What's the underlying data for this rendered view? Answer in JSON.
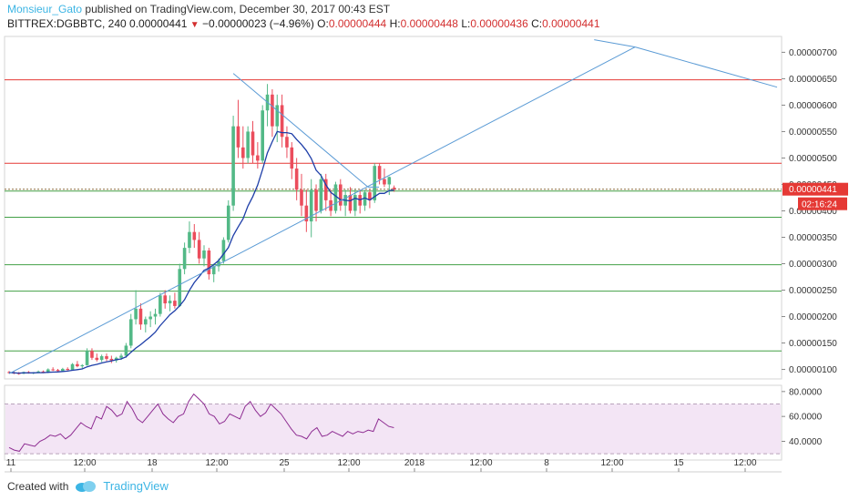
{
  "header": {
    "author": "Monsieur_Gato",
    "published": "published on TradingView.com, December 30, 2017 00:43 EST",
    "symbol": "BITTREX:DGBBTC, 240",
    "last": "0.00000441",
    "change": "−0.00000023 (−4.96%)",
    "o_label": "O:",
    "o": "0.00000444",
    "h_label": "H:",
    "h": "0.00000448",
    "l_label": "L:",
    "l": "0.00000436",
    "c_label": "C:",
    "c": "0.00000441"
  },
  "footer": {
    "created_with": "Created with",
    "brand": "TradingView"
  },
  "colors": {
    "up": "#53b987",
    "down": "#eb4d5c",
    "resistance": "#e53935",
    "support": "#43a047",
    "trend": "#5b9bd5",
    "ma": "#1e3ea8",
    "rsi": "#8e2d92",
    "rsi_band": "#f3e5f5"
  },
  "chart_data": {
    "type": "candlestick",
    "price_axis": {
      "ylim": [
        8.2e-07,
        7.3e-06
      ],
      "ticks": [
        "0.00000100",
        "0.00000150",
        "0.00000200",
        "0.00000250",
        "0.00000300",
        "0.00000350",
        "0.00000400",
        "0.00000450",
        "0.00000500",
        "0.00000550",
        "0.00000600",
        "0.00000650",
        "0.00000700"
      ],
      "tick_values": [
        1e-06,
        1.5e-06,
        2e-06,
        2.5e-06,
        3e-06,
        3.5e-06,
        4e-06,
        4.5e-06,
        5e-06,
        5.5e-06,
        6e-06,
        6.5e-06,
        7e-06
      ],
      "last_price_label": "0.00000441",
      "countdown": "02:16:24"
    },
    "time_axis": {
      "ticks": [
        "11",
        "12:00",
        "18",
        "12:00",
        "25",
        "12:00",
        "2018",
        "12:00",
        "8",
        "12:00",
        "15",
        "12:00"
      ]
    },
    "horizontal_levels": {
      "resistance": [
        6.48e-06,
        4.9e-06
      ],
      "support": [
        3.88e-06,
        2.98e-06,
        2.48e-06,
        1.35e-06
      ],
      "last": 4.41e-06
    },
    "candles": [
      [
        9.5e-07,
        9.7e-07,
        9.2e-07,
        9.4e-07
      ],
      [
        9.4e-07,
        9.6e-07,
        9.1e-07,
        9.3e-07
      ],
      [
        9.3e-07,
        9.5e-07,
        9e-07,
        9.2e-07
      ],
      [
        9.2e-07,
        9.6e-07,
        9.1e-07,
        9.5e-07
      ],
      [
        9.5e-07,
        9.7e-07,
        9.2e-07,
        9.3e-07
      ],
      [
        9.3e-07,
        9.5e-07,
        9.1e-07,
        9.4e-07
      ],
      [
        9.4e-07,
        9.8e-07,
        9.3e-07,
        9.6e-07
      ],
      [
        9.6e-07,
        9.8e-07,
        9.3e-07,
        9.4e-07
      ],
      [
        9.4e-07,
        1.02e-06,
        9.3e-07,
        1e-06
      ],
      [
        1e-06,
        1.04e-06,
        9.7e-07,
        9.9e-07
      ],
      [
        9.9e-07,
        1.01e-06,
        9.6e-07,
        9.7e-07
      ],
      [
        9.7e-07,
        1.03e-06,
        9.6e-07,
        1.01e-06
      ],
      [
        1.01e-06,
        1.04e-06,
        9.8e-07,
        9.9e-07
      ],
      [
        9.9e-07,
        1.12e-06,
        9.8e-07,
        1.1e-06
      ],
      [
        1.1e-06,
        1.16e-06,
        1.04e-06,
        1.06e-06
      ],
      [
        1.06e-06,
        1.1e-06,
        1.02e-06,
        1.08e-06
      ],
      [
        1.08e-06,
        1.4e-06,
        1.07e-06,
        1.35e-06
      ],
      [
        1.35e-06,
        1.4e-06,
        1.18e-06,
        1.22e-06
      ],
      [
        1.22e-06,
        1.3e-06,
        1.15e-06,
        1.18e-06
      ],
      [
        1.18e-06,
        1.28e-06,
        1.14e-06,
        1.25e-06
      ],
      [
        1.25e-06,
        1.3e-06,
        1.16e-06,
        1.2e-06
      ],
      [
        1.2e-06,
        1.26e-06,
        1.12e-06,
        1.17e-06
      ],
      [
        1.17e-06,
        1.24e-06,
        1.13e-06,
        1.22e-06
      ],
      [
        1.22e-06,
        1.3e-06,
        1.18e-06,
        1.26e-06
      ],
      [
        1.26e-06,
        1.5e-06,
        1.22e-06,
        1.45e-06
      ],
      [
        1.45e-06,
        2.05e-06,
        1.4e-06,
        1.95e-06
      ],
      [
        1.95e-06,
        2.5e-06,
        1.85e-06,
        2.15e-06
      ],
      [
        2.15e-06,
        2.25e-06,
        1.75e-06,
        1.85e-06
      ],
      [
        1.85e-06,
        2e-06,
        1.7e-06,
        1.95e-06
      ],
      [
        1.95e-06,
        2.1e-06,
        1.8e-06,
        2e-06
      ],
      [
        2e-06,
        2.15e-06,
        1.85e-06,
        2.05e-06
      ],
      [
        2.05e-06,
        2.45e-06,
        2e-06,
        2.4e-06
      ],
      [
        2.4e-06,
        2.5e-06,
        2.15e-06,
        2.25e-06
      ],
      [
        2.25e-06,
        2.4e-06,
        2.1e-06,
        2.3e-06
      ],
      [
        2.3e-06,
        2.45e-06,
        2.15e-06,
        2.2e-06
      ],
      [
        2.2e-06,
        3e-06,
        2.18e-06,
        2.9e-06
      ],
      [
        2.9e-06,
        3.4e-06,
        2.8e-06,
        3.3e-06
      ],
      [
        3.3e-06,
        3.8e-06,
        3.2e-06,
        3.6e-06
      ],
      [
        3.6e-06,
        3.75e-06,
        3.3e-06,
        3.45e-06
      ],
      [
        3.45e-06,
        3.6e-06,
        3e-06,
        3.1e-06
      ],
      [
        3.1e-06,
        3.35e-06,
        2.95e-06,
        3.25e-06
      ],
      [
        3.25e-06,
        3.3e-06,
        2.7e-06,
        2.8e-06
      ],
      [
        2.8e-06,
        3e-06,
        2.65e-06,
        2.95e-06
      ],
      [
        2.95e-06,
        3.1e-06,
        2.85e-06,
        3.05e-06
      ],
      [
        3.05e-06,
        3.5e-06,
        3e-06,
        3.45e-06
      ],
      [
        3.45e-06,
        4.2e-06,
        3.4e-06,
        4.1e-06
      ],
      [
        4.1e-06,
        5.8e-06,
        4e-06,
        5.6e-06
      ],
      [
        5.6e-06,
        6.1e-06,
        5e-06,
        5.2e-06
      ],
      [
        5.2e-06,
        5.6e-06,
        4.8e-06,
        5e-06
      ],
      [
        5e-06,
        5.6e-06,
        4.9e-06,
        5.5e-06
      ],
      [
        5.5e-06,
        5.7e-06,
        4.9e-06,
        5.05e-06
      ],
      [
        5.05e-06,
        5.3e-06,
        4.8e-06,
        4.95e-06
      ],
      [
        4.95e-06,
        6e-06,
        4.9e-06,
        5.9e-06
      ],
      [
        5.9e-06,
        6.4e-06,
        5.6e-06,
        6.2e-06
      ],
      [
        6.2e-06,
        6.3e-06,
        5.4e-06,
        5.6e-06
      ],
      [
        5.6e-06,
        6.2e-06,
        5.3e-06,
        6e-06
      ],
      [
        6e-06,
        6.2e-06,
        5.2e-06,
        5.4e-06
      ],
      [
        5.4e-06,
        5.6e-06,
        5e-06,
        5.2e-06
      ],
      [
        5.2e-06,
        5.3e-06,
        4.6e-06,
        4.8e-06
      ],
      [
        4.8e-06,
        5e-06,
        4.2e-06,
        4.4e-06
      ],
      [
        4.4e-06,
        4.7e-06,
        3.9e-06,
        4.1e-06
      ],
      [
        4.1e-06,
        4.4e-06,
        3.6e-06,
        3.8e-06
      ],
      [
        3.8e-06,
        4.6e-06,
        3.5e-06,
        4.4e-06
      ],
      [
        4.4e-06,
        4.5e-06,
        3.8e-06,
        4e-06
      ],
      [
        4e-06,
        4.7e-06,
        3.95e-06,
        4.6e-06
      ],
      [
        4.6e-06,
        4.7e-06,
        4e-06,
        4.2e-06
      ],
      [
        4.2e-06,
        4.4e-06,
        3.9e-06,
        4e-06
      ],
      [
        4e-06,
        4.55e-06,
        3.95e-06,
        4.5e-06
      ],
      [
        4.5e-06,
        4.6e-06,
        4e-06,
        4.1e-06
      ],
      [
        4.1e-06,
        4.4e-06,
        3.9e-06,
        4.3e-06
      ],
      [
        4.3e-06,
        4.45e-06,
        3.95e-06,
        4e-06
      ],
      [
        4e-06,
        4.4e-06,
        3.9e-06,
        4.3e-06
      ],
      [
        4.3e-06,
        4.4e-06,
        3.95e-06,
        4.1e-06
      ],
      [
        4.1e-06,
        4.4e-06,
        4e-06,
        4.35e-06
      ],
      [
        4.35e-06,
        4.4e-06,
        4.05e-06,
        4.2e-06
      ],
      [
        4.2e-06,
        4.9e-06,
        4.15e-06,
        4.85e-06
      ],
      [
        4.85e-06,
        4.9e-06,
        4.5e-06,
        4.6e-06
      ],
      [
        4.6e-06,
        4.8e-06,
        4.45e-06,
        4.5e-06
      ],
      [
        4.5e-06,
        4.65e-06,
        4.3e-06,
        4.64e-06
      ],
      [
        4.44e-06,
        4.48e-06,
        4.36e-06,
        4.41e-06
      ]
    ],
    "trendlines": [
      {
        "p1": [
          0,
          9.2e-07
        ],
        "p2": [
          74,
          4.48e-06
        ],
        "extend_to": 7.1e-06
      },
      {
        "p1": [
          46,
          6.6e-06
        ],
        "p2": [
          73,
          4.5e-06
        ],
        "extend_to_price": 4.45e-06
      },
      {
        "from_peak": [
          115,
          7.1e-06
        ],
        "to": [
          150,
          6.34e-06
        ]
      }
    ],
    "rsi": {
      "ylim": [
        25,
        85
      ],
      "ticks": [
        "80.0000",
        "60.0000",
        "40.0000"
      ],
      "tick_values": [
        80,
        60,
        40
      ],
      "upper_band": 70,
      "lower_band": 30,
      "values": [
        35,
        33,
        32,
        38,
        37,
        36,
        40,
        42,
        45,
        44,
        46,
        42,
        45,
        50,
        55,
        52,
        50,
        60,
        58,
        68,
        65,
        60,
        62,
        72,
        66,
        58,
        55,
        60,
        65,
        70,
        62,
        58,
        55,
        60,
        62,
        72,
        78,
        74,
        70,
        62,
        60,
        54,
        56,
        62,
        60,
        58,
        68,
        72,
        65,
        60,
        63,
        70,
        66,
        62,
        56,
        50,
        45,
        44,
        42,
        48,
        51,
        44,
        45,
        48,
        46,
        44,
        48,
        46,
        48,
        47,
        49,
        48,
        58,
        55,
        52,
        51
      ]
    }
  }
}
